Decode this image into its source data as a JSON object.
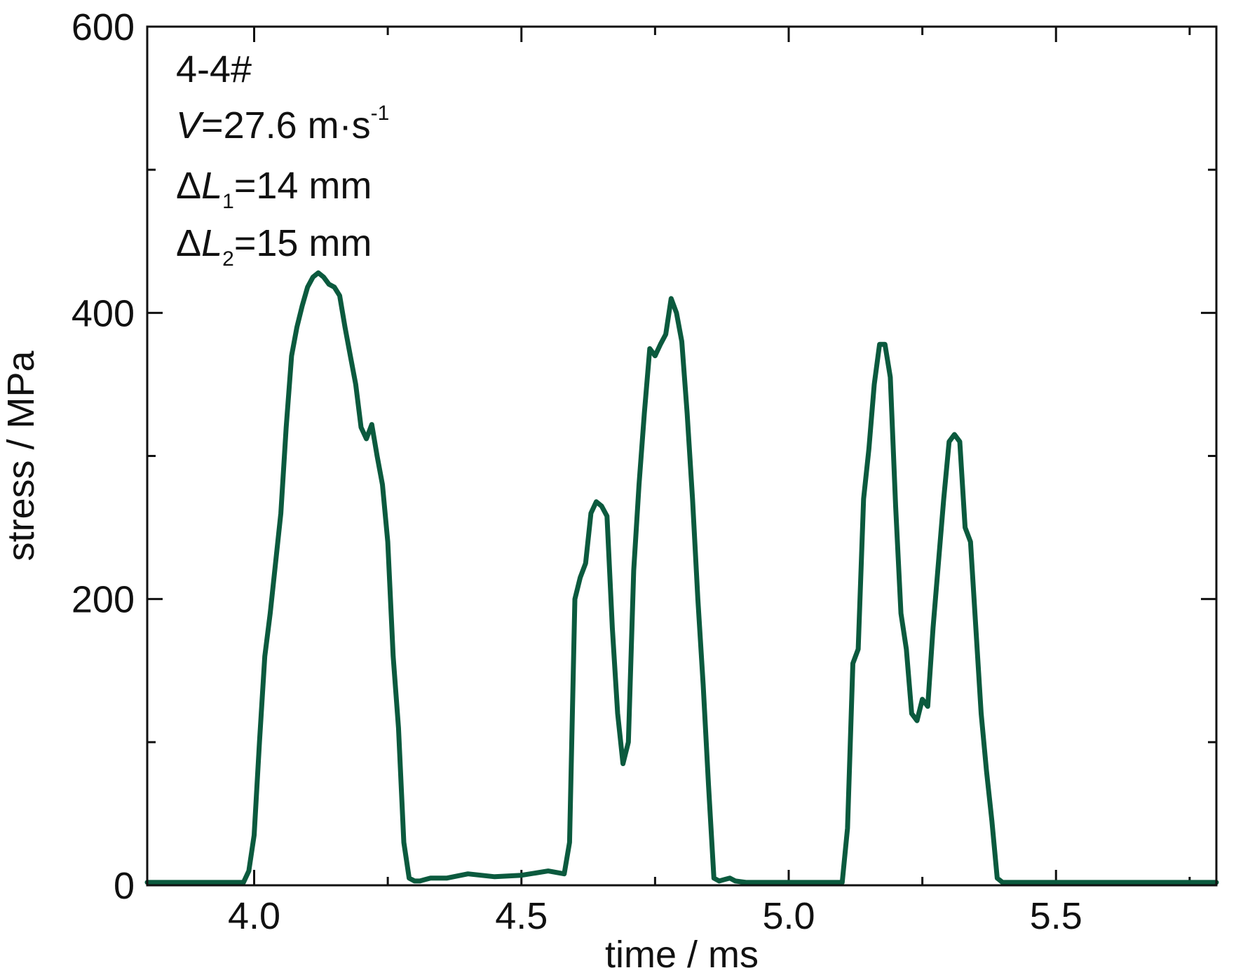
{
  "chart_data": {
    "type": "line",
    "xlabel": "time / ms",
    "ylabel": "stress / MPa",
    "xlim": [
      3.8,
      5.8
    ],
    "ylim": [
      0,
      600
    ],
    "x_ticks": [
      4.0,
      4.5,
      5.0,
      5.5
    ],
    "x_tick_labels": [
      "4.0",
      "4.5",
      "5.0",
      "5.5"
    ],
    "y_ticks": [
      0,
      200,
      400,
      600
    ],
    "y_tick_labels": [
      "0",
      "200",
      "400",
      "600"
    ],
    "grid": false,
    "line_color": "#0b5a3e",
    "annotations": {
      "specimen": "4-4#",
      "velocity": {
        "symbol": "V",
        "rest": "=27.6 m·s",
        "exponent": "-1"
      },
      "dl1": {
        "delta": "Δ",
        "symbol": "L",
        "sub": "1",
        "rest": "=14 mm"
      },
      "dl2": {
        "delta": "Δ",
        "symbol": "L",
        "sub": "2",
        "rest": "=15 mm"
      }
    },
    "series": [
      {
        "x": [
          3.8,
          3.9,
          3.98,
          3.99,
          4.0,
          4.01,
          4.02,
          4.03,
          4.05,
          4.06,
          4.07,
          4.08,
          4.09,
          4.1,
          4.11,
          4.12,
          4.13,
          4.14,
          4.15,
          4.16,
          4.17,
          4.18,
          4.19,
          4.2,
          4.21,
          4.22,
          4.23,
          4.24,
          4.25,
          4.26,
          4.27,
          4.28,
          4.29,
          4.3,
          4.31,
          4.32,
          4.33,
          4.34,
          4.36,
          4.4,
          4.45,
          4.5,
          4.55,
          4.58,
          4.59,
          4.6,
          4.61,
          4.62,
          4.63,
          4.64,
          4.65,
          4.66,
          4.67,
          4.68,
          4.69,
          4.7,
          4.71,
          4.72,
          4.73,
          4.74,
          4.75,
          4.76,
          4.77,
          4.78,
          4.79,
          4.8,
          4.81,
          4.82,
          4.83,
          4.84,
          4.85,
          4.86,
          4.87,
          4.88,
          4.89,
          4.9,
          4.92,
          4.96,
          5.0,
          5.05,
          5.1,
          5.11,
          5.12,
          5.13,
          5.14,
          5.15,
          5.16,
          5.17,
          5.18,
          5.19,
          5.2,
          5.21,
          5.22,
          5.23,
          5.24,
          5.25,
          5.26,
          5.27,
          5.28,
          5.29,
          5.3,
          5.31,
          5.32,
          5.33,
          5.34,
          5.35,
          5.36,
          5.37,
          5.38,
          5.39,
          5.4,
          5.41,
          5.42,
          5.43,
          5.44,
          5.45,
          5.5,
          5.6,
          5.7,
          5.8
        ],
        "y": [
          2,
          2,
          2,
          10,
          35,
          100,
          160,
          190,
          260,
          320,
          370,
          390,
          405,
          418,
          425,
          428,
          425,
          420,
          418,
          412,
          390,
          370,
          350,
          320,
          312,
          322,
          300,
          280,
          240,
          160,
          110,
          30,
          5,
          3,
          3,
          4,
          5,
          5,
          5,
          8,
          6,
          7,
          10,
          8,
          30,
          200,
          215,
          225,
          260,
          268,
          265,
          258,
          180,
          120,
          85,
          100,
          220,
          280,
          330,
          375,
          370,
          378,
          385,
          410,
          400,
          380,
          330,
          270,
          200,
          140,
          70,
          5,
          3,
          4,
          5,
          3,
          2,
          2,
          2,
          2,
          2,
          40,
          155,
          165,
          270,
          305,
          350,
          378,
          378,
          355,
          265,
          190,
          165,
          120,
          115,
          130,
          125,
          180,
          225,
          270,
          310,
          315,
          310,
          250,
          240,
          180,
          120,
          80,
          45,
          5,
          2,
          2,
          2,
          2,
          2,
          2,
          2,
          2,
          2,
          2
        ]
      }
    ]
  }
}
